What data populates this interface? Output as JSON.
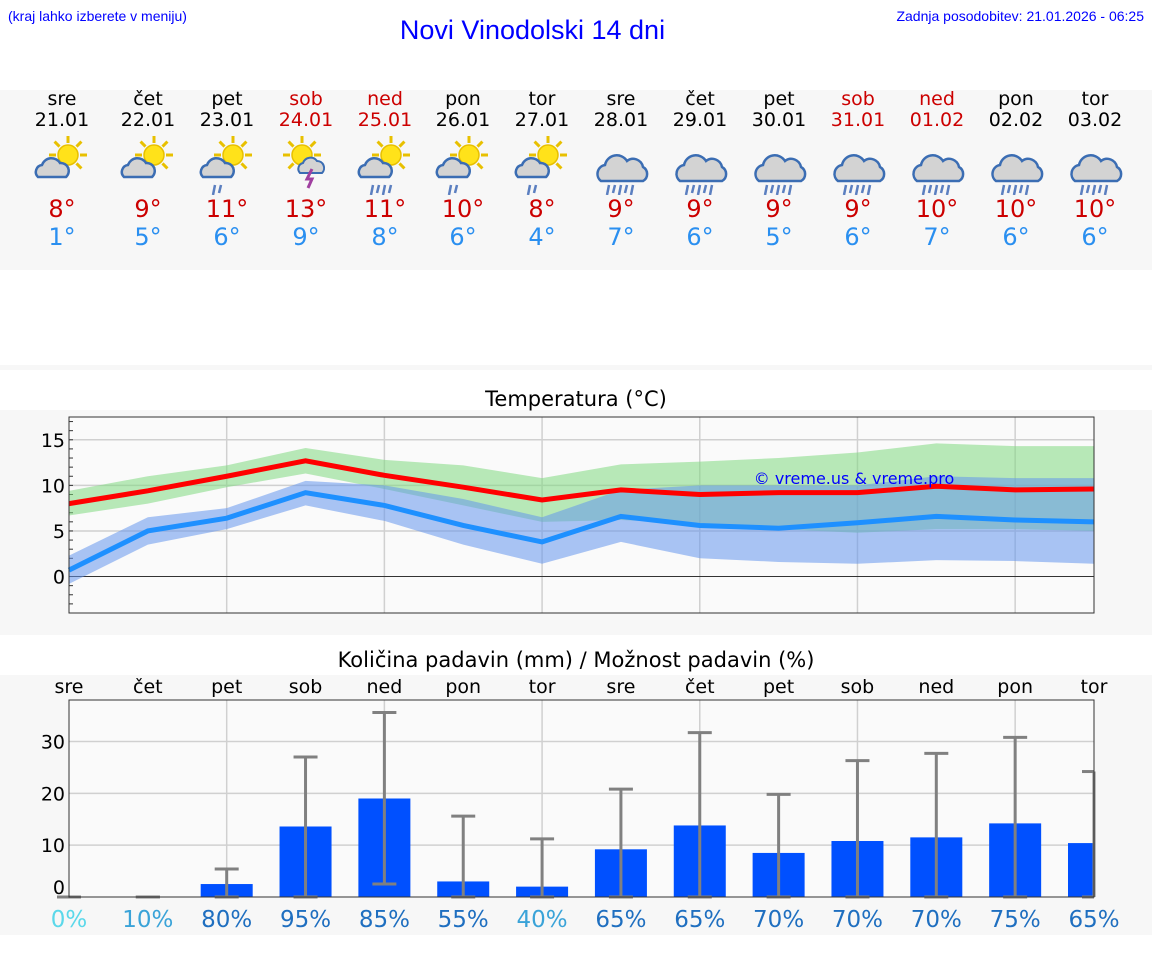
{
  "header": {
    "hint": "(kraj lahko izberete v meniju)",
    "title": "Novi Vinodolski 14 dni",
    "updated": "Zadnja posodobitev: 21.01.2026 - 06:25"
  },
  "days": [
    {
      "name": "sre",
      "date": "21.01",
      "weekend": false,
      "icon": "sun-cloud",
      "max": "8°",
      "min": "1°"
    },
    {
      "name": "čet",
      "date": "22.01",
      "weekend": false,
      "icon": "sun-cloud",
      "max": "9°",
      "min": "5°"
    },
    {
      "name": "pet",
      "date": "23.01",
      "weekend": false,
      "icon": "sun-cloud-light-rain",
      "max": "11°",
      "min": "6°"
    },
    {
      "name": "sob",
      "date": "24.01",
      "weekend": true,
      "icon": "sun-thunderstorm",
      "max": "13°",
      "min": "9°"
    },
    {
      "name": "ned",
      "date": "25.01",
      "weekend": true,
      "icon": "sun-cloud-rain",
      "max": "11°",
      "min": "8°"
    },
    {
      "name": "pon",
      "date": "26.01",
      "weekend": false,
      "icon": "sun-cloud-light-rain",
      "max": "10°",
      "min": "6°"
    },
    {
      "name": "tor",
      "date": "27.01",
      "weekend": false,
      "icon": "sun-cloud-light-rain",
      "max": "8°",
      "min": "4°"
    },
    {
      "name": "sre",
      "date": "28.01",
      "weekend": false,
      "icon": "cloud-rain",
      "max": "9°",
      "min": "7°"
    },
    {
      "name": "čet",
      "date": "29.01",
      "weekend": false,
      "icon": "cloud-rain",
      "max": "9°",
      "min": "6°"
    },
    {
      "name": "pet",
      "date": "30.01",
      "weekend": false,
      "icon": "cloud-rain",
      "max": "9°",
      "min": "5°"
    },
    {
      "name": "sob",
      "date": "31.01",
      "weekend": true,
      "icon": "cloud-rain",
      "max": "9°",
      "min": "6°"
    },
    {
      "name": "ned",
      "date": "01.02",
      "weekend": true,
      "icon": "cloud-rain",
      "max": "10°",
      "min": "7°"
    },
    {
      "name": "pon",
      "date": "02.02",
      "weekend": false,
      "icon": "cloud-rain",
      "max": "10°",
      "min": "6°"
    },
    {
      "name": "tor",
      "date": "03.02",
      "weekend": false,
      "icon": "cloud-rain",
      "max": "10°",
      "min": "6°"
    }
  ],
  "chart_data": [
    {
      "type": "line",
      "title": "Temperatura (°C)",
      "ylim": [
        -4,
        17.5
      ],
      "yticks": [
        0,
        5,
        10,
        15
      ],
      "grid": true,
      "watermark": "© vreme.us & vreme.pro",
      "series": [
        {
          "name": "max",
          "color": "#ff0000",
          "values": [
            8,
            9.4,
            11,
            12.7,
            11.1,
            9.8,
            8.4,
            9.5,
            9.0,
            9.2,
            9.2,
            9.9,
            9.5,
            9.6
          ]
        },
        {
          "name": "min",
          "color": "#1e90ff",
          "values": [
            0.7,
            5,
            6.4,
            9.2,
            7.8,
            5.6,
            3.8,
            6.6,
            5.6,
            5.3,
            5.9,
            6.6,
            6.2,
            6.0
          ]
        }
      ],
      "bands": [
        {
          "name": "max-range",
          "color": "#7fd97f",
          "lower": [
            6.7,
            8,
            9.8,
            11.3,
            9.6,
            7.8,
            6.0,
            6.2,
            5.8,
            5.2,
            4.8,
            5.2,
            5.2,
            5.0
          ],
          "upper": [
            9.4,
            11,
            12.2,
            14.1,
            12.8,
            12.2,
            10.8,
            12.3,
            12.6,
            13,
            13.6,
            14.6,
            14.3,
            14.3
          ]
        },
        {
          "name": "min-range",
          "color": "#6495ed",
          "lower": [
            -0.8,
            3.5,
            5.2,
            7.8,
            6.1,
            3.5,
            1.4,
            3.8,
            2.0,
            1.6,
            1.4,
            1.8,
            1.7,
            1.4
          ],
          "upper": [
            2.3,
            6.5,
            7.5,
            10.5,
            10,
            8.5,
            6.5,
            9.5,
            10,
            10,
            10,
            11,
            10.8,
            10.8
          ]
        }
      ]
    },
    {
      "type": "bar",
      "title": "Količina padavin (mm) / Možnost padavin (%)",
      "ylim": [
        0,
        38
      ],
      "yticks": [
        0,
        10,
        20,
        30
      ],
      "grid": true,
      "categories": [
        "sre",
        "čet",
        "pet",
        "sob",
        "ned",
        "pon",
        "tor",
        "sre",
        "čet",
        "pet",
        "sob",
        "ned",
        "pon",
        "tor"
      ],
      "values": [
        0,
        0,
        2.5,
        13.6,
        19,
        3,
        2,
        9.2,
        13.8,
        8.5,
        10.8,
        11.5,
        14.2,
        10.4
      ],
      "err_low": [
        0,
        0,
        0,
        0,
        2.5,
        0,
        0,
        0,
        0,
        0,
        0,
        0,
        0,
        0
      ],
      "err_high": [
        0,
        0,
        5.4,
        27,
        35.6,
        15.6,
        11.2,
        20.8,
        31.7,
        19.8,
        26.3,
        27.7,
        30.8,
        24.2
      ],
      "bar_color": "#0050ff",
      "probability": [
        "0%",
        "10%",
        "80%",
        "95%",
        "85%",
        "55%",
        "40%",
        "65%",
        "65%",
        "70%",
        "70%",
        "70%",
        "75%",
        "65%"
      ],
      "probability_colors": [
        "#5bd8ea",
        "#3aa3d8",
        "#1f6fc0",
        "#1f6fc0",
        "#1f6fc0",
        "#1f6fc0",
        "#3aa3d8",
        "#1f6fc0",
        "#1f6fc0",
        "#1f6fc0",
        "#1f6fc0",
        "#1f6fc0",
        "#1f6fc0",
        "#1f6fc0"
      ]
    }
  ]
}
